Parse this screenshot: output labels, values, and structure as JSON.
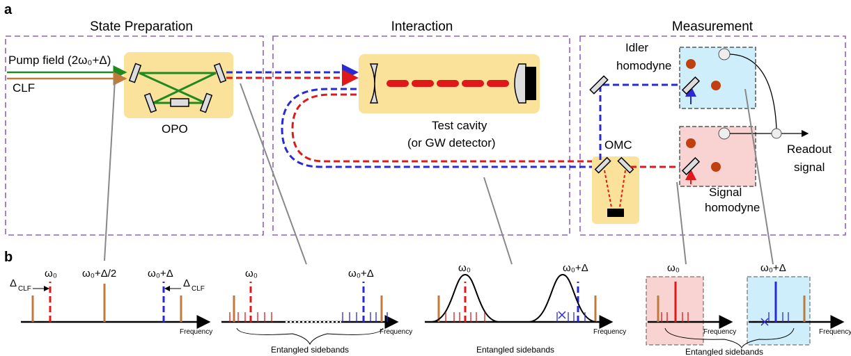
{
  "panel_a": {
    "label": "a",
    "sections": [
      "State Preparation",
      "Interaction",
      "Measurement"
    ],
    "pump": "Pump field (2ω₀+Δ)",
    "clf": "CLF",
    "opo": "OPO",
    "test_cavity": [
      "Test cavity",
      "(or GW detector)"
    ],
    "idler": [
      "Idler",
      "homodyne"
    ],
    "omc": "OMC",
    "readout": [
      "Readout",
      "signal"
    ],
    "signal": [
      "Signal",
      "homodyne"
    ]
  },
  "panel_b": {
    "label": "b",
    "delta_clf": [
      "Δ",
      "CLF"
    ],
    "spectra": [
      {
        "labels": [
          "ω₀",
          "ω₀+Δ/2",
          "ω₀+Δ"
        ],
        "axis": "Frequency"
      },
      {
        "labels": [
          "ω₀",
          "ω₀+Δ"
        ],
        "axis": "Frequency",
        "caption": "Entangled sidebands"
      },
      {
        "labels": [
          "ω₀",
          "ω₀+Δ"
        ],
        "axis": "Frequency",
        "caption": "Entangled sidebands"
      },
      {
        "labels": [
          "ω₀",
          "ω₀+Δ"
        ],
        "axis": "Frequency",
        "caption": "Entangled sidebands"
      }
    ]
  }
}
